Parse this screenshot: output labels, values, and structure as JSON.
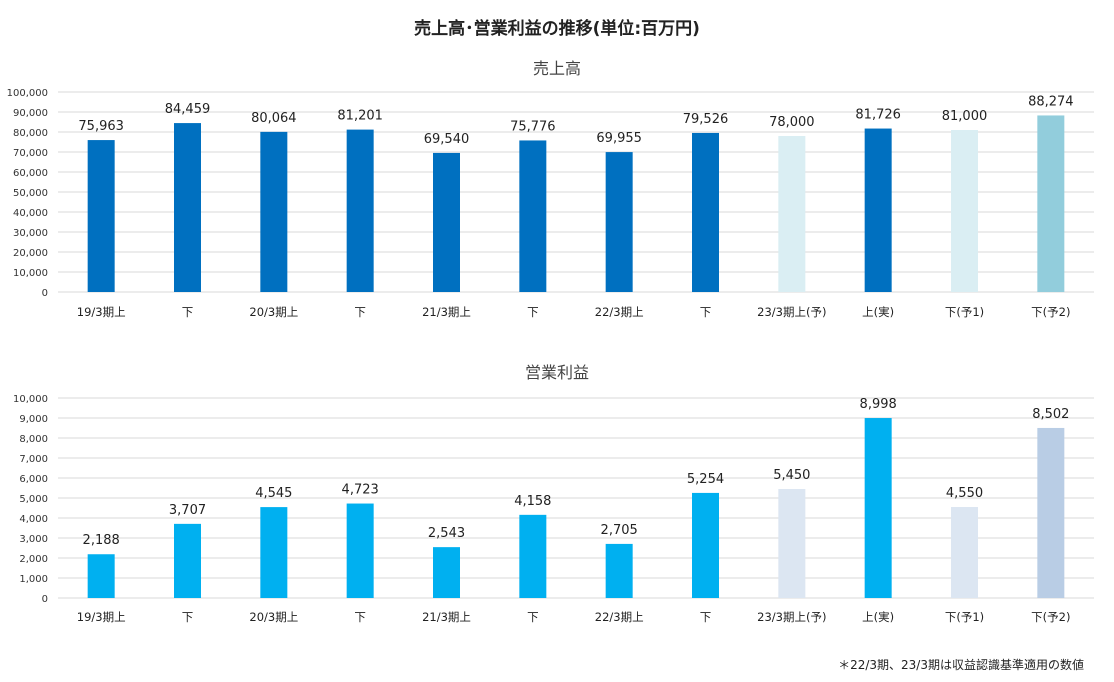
{
  "page": {
    "title": "売上高･営業利益の推移(単位:百万円)",
    "footnote": "＊22/3期、23/3期は収益認識基準適用の数値"
  },
  "colors": {
    "actual_sales": "#0070c0",
    "actual_profit": "#00b0f0",
    "forecast_sales": "#daeef3",
    "forecast_profit": "#dce6f2",
    "forecast2_sales": "#92cddc",
    "forecast2_profit": "#b9cde5",
    "grid": "#d9d9d9"
  },
  "chart_data": [
    {
      "type": "bar",
      "title": "売上高",
      "categories": [
        "19/3期上",
        "下",
        "20/3期上",
        "下",
        "21/3期上",
        "下",
        "22/3期上",
        "下",
        "23/3期上(予)",
        "上(実)",
        "下(予1)",
        "下(予2)"
      ],
      "values": [
        75963,
        84459,
        80064,
        81201,
        69540,
        75776,
        69955,
        79526,
        78000,
        81726,
        81000,
        88274
      ],
      "data_labels": [
        "75,963",
        "84,459",
        "80,064",
        "81,201",
        "69,540",
        "75,776",
        "69,955",
        "79,526",
        "78,000",
        "81,726",
        "81,000",
        "88,274"
      ],
      "bar_kinds": [
        "actual",
        "actual",
        "actual",
        "actual",
        "actual",
        "actual",
        "actual",
        "actual",
        "forecast",
        "actual",
        "forecast",
        "forecast2"
      ],
      "ylim": [
        0,
        100000
      ],
      "yticks": [
        0,
        10000,
        20000,
        30000,
        40000,
        50000,
        60000,
        70000,
        80000,
        90000,
        100000
      ],
      "ytick_labels": [
        "0",
        "10,000",
        "20,000",
        "30,000",
        "40,000",
        "50,000",
        "60,000",
        "70,000",
        "80,000",
        "90,000",
        "100,000"
      ],
      "grid": true,
      "legend": "none"
    },
    {
      "type": "bar",
      "title": "営業利益",
      "categories": [
        "19/3期上",
        "下",
        "20/3期上",
        "下",
        "21/3期上",
        "下",
        "22/3期上",
        "下",
        "23/3期上(予)",
        "上(実)",
        "下(予1)",
        "下(予2)"
      ],
      "values": [
        2188,
        3707,
        4545,
        4723,
        2543,
        4158,
        2705,
        5254,
        5450,
        8998,
        4550,
        8502
      ],
      "data_labels": [
        "2,188",
        "3,707",
        "4,545",
        "4,723",
        "2,543",
        "4,158",
        "2,705",
        "5,254",
        "5,450",
        "8,998",
        "4,550",
        "8,502"
      ],
      "bar_kinds": [
        "actual",
        "actual",
        "actual",
        "actual",
        "actual",
        "actual",
        "actual",
        "actual",
        "forecast",
        "actual",
        "forecast",
        "forecast2"
      ],
      "ylim": [
        0,
        10000
      ],
      "yticks": [
        0,
        1000,
        2000,
        3000,
        4000,
        5000,
        6000,
        7000,
        8000,
        9000,
        10000
      ],
      "ytick_labels": [
        "0",
        "1,000",
        "2,000",
        "3,000",
        "4,000",
        "5,000",
        "6,000",
        "7,000",
        "8,000",
        "9,000",
        "10,000"
      ],
      "grid": true,
      "legend": "none"
    }
  ]
}
